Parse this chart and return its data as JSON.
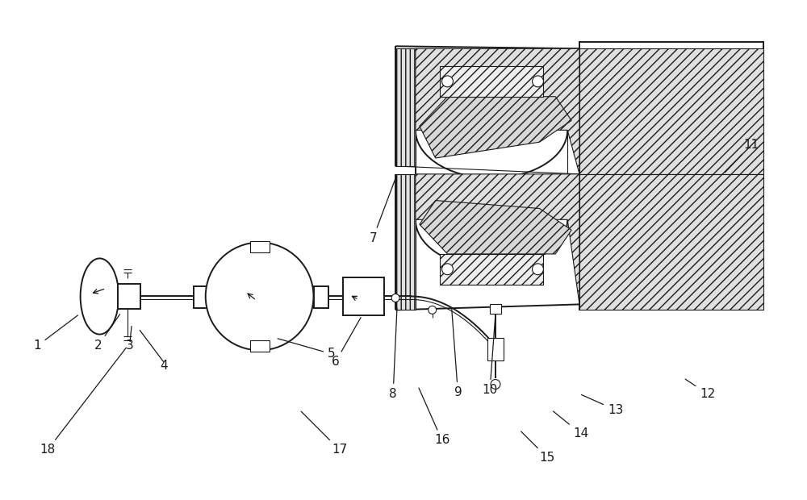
{
  "bg_color": "#ffffff",
  "line_color": "#1a1a1a",
  "figsize": [
    10.0,
    6.2
  ],
  "dpi": 100,
  "label_fs": 11,
  "lw_main": 1.4,
  "lw_thin": 0.8,
  "lw_ann": 0.9
}
